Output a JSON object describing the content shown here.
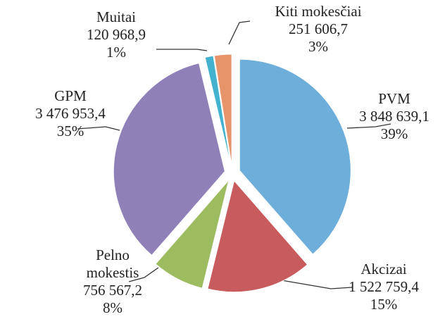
{
  "chart_data": {
    "type": "pie",
    "categories": [
      "PVM",
      "Akcizai",
      "Pelno mokestis",
      "GPM",
      "Muitai",
      "Kiti mokesčiai"
    ],
    "values": [
      3848639.1,
      1522759.4,
      756567.2,
      3476953.4,
      120968.9,
      251606.7
    ],
    "value_labels": [
      "3 848 639,1",
      "1 522 759,4",
      "756 567,2",
      "3 476 953,4",
      "120 968,9",
      "251 606,7"
    ],
    "percent_labels": [
      "39%",
      "15%",
      "8%",
      "35%",
      "1%",
      "3%"
    ],
    "colors": [
      "#6eaedb",
      "#c75b5e",
      "#9dbb5f",
      "#8f80b8",
      "#43b2cf",
      "#e8946a"
    ]
  }
}
